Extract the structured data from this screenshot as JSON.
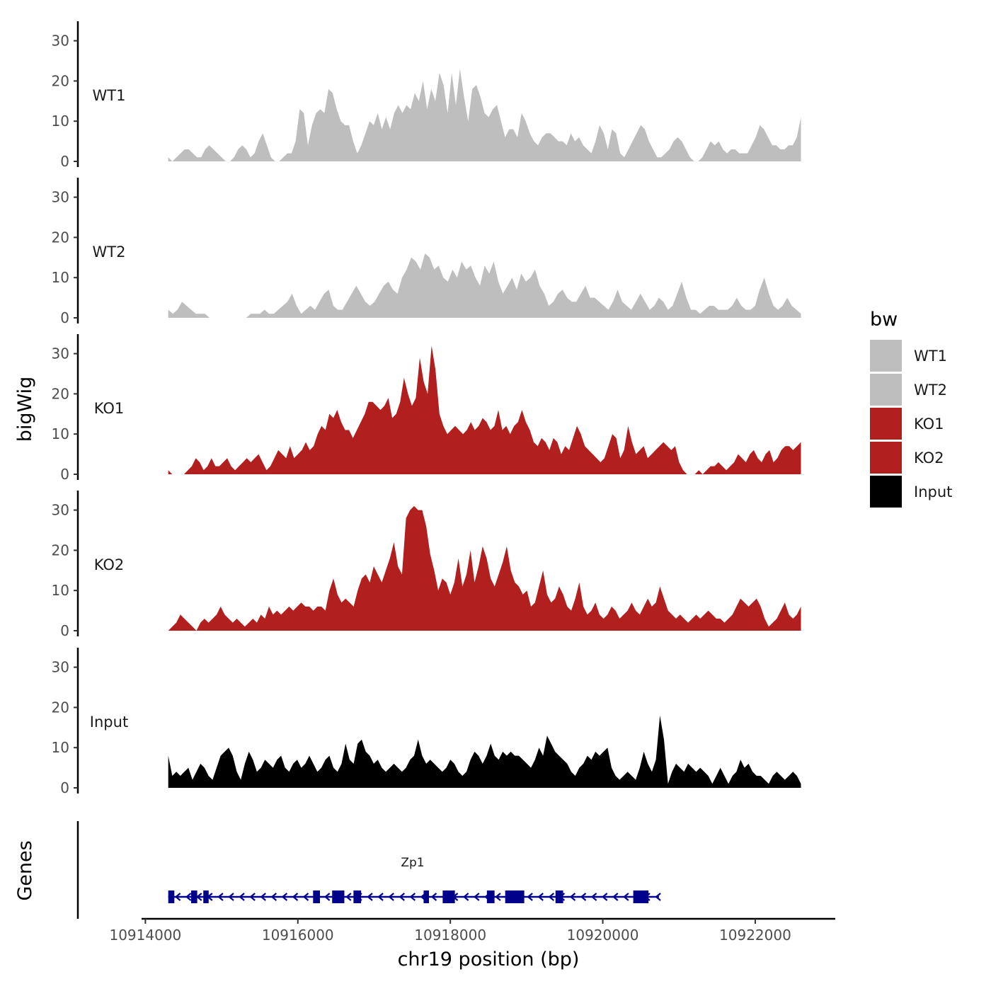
{
  "chart_data": {
    "type": "area",
    "chromosome": "chr19",
    "xlabel": "chr19 position (bp)",
    "ylabel": "bigWig",
    "gene_panel_label": "Genes",
    "xlim": [
      10913950,
      10923050
    ],
    "x_ticks": [
      10914000,
      10916000,
      10918000,
      10920000,
      10922000
    ],
    "x_tick_labels": [
      "10914000",
      "10916000",
      "10918000",
      "10920000",
      "10922000"
    ],
    "ylim": [
      0,
      34
    ],
    "y_ticks": [
      0,
      10,
      20,
      30
    ],
    "y_tick_labels": [
      "0",
      "10",
      "20",
      "30"
    ],
    "series": [
      {
        "name": "WT1",
        "color": "#bebebe",
        "x_start": 10914300,
        "x_end": 10922600,
        "values": [
          1,
          0,
          1,
          2,
          3,
          3,
          2,
          1,
          1,
          3,
          4,
          3,
          2,
          1,
          0,
          0,
          1,
          3,
          4,
          3,
          1,
          2,
          5,
          7,
          4,
          1,
          0,
          0,
          1,
          2,
          2,
          5,
          13,
          12,
          4,
          9,
          12,
          13,
          12,
          18,
          17,
          13,
          10,
          9,
          9,
          5,
          2,
          4,
          7,
          10,
          9,
          12,
          8,
          11,
          8,
          12,
          14,
          12,
          14,
          13,
          17,
          15,
          20,
          13,
          18,
          15,
          22,
          19,
          12,
          22,
          14,
          23,
          16,
          10,
          18,
          19,
          16,
          12,
          11,
          13,
          14,
          10,
          6,
          8,
          8,
          6,
          12,
          10,
          7,
          5,
          4,
          6,
          7,
          7,
          6,
          5,
          5,
          4,
          7,
          5,
          6,
          4,
          3,
          2,
          5,
          9,
          7,
          3,
          8,
          7,
          2,
          1,
          3,
          5,
          7,
          9,
          8,
          5,
          3,
          1,
          1,
          2,
          3,
          5,
          6,
          5,
          3,
          1,
          0,
          0,
          1,
          3,
          5,
          4,
          5,
          3,
          2,
          3,
          3,
          2,
          2,
          2,
          4,
          6,
          9,
          8,
          6,
          4,
          4,
          3,
          3,
          4,
          4,
          6,
          11
        ]
      },
      {
        "name": "WT2",
        "color": "#bebebe",
        "x_start": 10914300,
        "x_end": 10922600,
        "values": [
          2,
          1,
          2,
          4,
          3,
          2,
          1,
          1,
          1,
          0,
          0,
          0,
          0,
          0,
          0,
          0,
          0,
          0,
          1,
          1,
          1,
          2,
          1,
          1,
          2,
          3,
          4,
          6,
          3,
          1,
          2,
          3,
          2,
          4,
          6,
          7,
          3,
          2,
          2,
          4,
          6,
          8,
          6,
          4,
          3,
          4,
          6,
          8,
          9,
          7,
          6,
          10,
          12,
          15,
          14,
          12,
          16,
          15,
          12,
          13,
          10,
          9,
          12,
          10,
          14,
          12,
          13,
          10,
          8,
          13,
          11,
          14,
          9,
          6,
          8,
          10,
          7,
          11,
          9,
          10,
          12,
          8,
          6,
          3,
          4,
          6,
          7,
          5,
          4,
          4,
          6,
          8,
          5,
          5,
          4,
          3,
          2,
          4,
          7,
          4,
          3,
          2,
          4,
          6,
          4,
          2,
          3,
          5,
          4,
          2,
          3,
          6,
          9,
          5,
          2,
          2,
          1,
          2,
          3,
          3,
          2,
          2,
          2,
          3,
          5,
          3,
          2,
          2,
          3,
          7,
          10,
          6,
          3,
          2,
          3,
          5,
          3,
          2,
          1
        ]
      },
      {
        "name": "KO1",
        "color": "#b11f1f",
        "x_start": 10914300,
        "x_end": 10922600,
        "values": [
          1,
          0,
          0,
          0,
          0,
          1,
          2,
          4,
          3,
          1,
          2,
          4,
          2,
          2,
          3,
          4,
          2,
          1,
          2,
          3,
          4,
          3,
          4,
          5,
          3,
          1,
          2,
          4,
          6,
          5,
          4,
          7,
          4,
          5,
          6,
          8,
          6,
          7,
          10,
          12,
          11,
          15,
          14,
          16,
          13,
          11,
          11,
          9,
          11,
          13,
          15,
          18,
          18,
          17,
          16,
          17,
          19,
          14,
          15,
          18,
          24,
          20,
          17,
          19,
          29,
          23,
          20,
          32,
          26,
          15,
          12,
          10,
          11,
          12,
          11,
          10,
          11,
          13,
          11,
          12,
          14,
          13,
          11,
          12,
          16,
          11,
          12,
          10,
          12,
          13,
          16,
          13,
          11,
          8,
          7,
          9,
          8,
          6,
          9,
          8,
          5,
          7,
          6,
          9,
          12,
          10,
          7,
          6,
          5,
          4,
          3,
          4,
          7,
          10,
          9,
          4,
          6,
          12,
          8,
          5,
          6,
          7,
          4,
          5,
          6,
          7,
          8,
          7,
          6,
          7,
          3,
          1,
          0,
          0,
          0,
          1,
          0,
          1,
          2,
          2,
          3,
          2,
          1,
          2,
          3,
          5,
          4,
          3,
          5,
          6,
          4,
          3,
          5,
          6,
          3,
          4,
          6,
          7,
          7,
          6,
          7,
          8
        ]
      },
      {
        "name": "KO2",
        "color": "#b11f1f",
        "x_start": 10914300,
        "x_end": 10922600,
        "values": [
          0,
          1,
          2,
          4,
          3,
          2,
          1,
          0,
          2,
          3,
          2,
          3,
          4,
          6,
          4,
          3,
          2,
          3,
          2,
          1,
          2,
          3,
          2,
          4,
          3,
          6,
          4,
          5,
          4,
          5,
          6,
          5,
          6,
          7,
          6,
          6,
          5,
          6,
          6,
          5,
          10,
          13,
          9,
          7,
          8,
          7,
          6,
          10,
          13,
          14,
          12,
          16,
          14,
          12,
          15,
          18,
          22,
          16,
          14,
          28,
          30,
          31,
          30,
          30,
          26,
          19,
          15,
          10,
          13,
          12,
          9,
          12,
          18,
          11,
          14,
          20,
          12,
          16,
          21,
          18,
          13,
          11,
          14,
          17,
          21,
          15,
          12,
          11,
          9,
          10,
          6,
          7,
          11,
          15,
          9,
          7,
          8,
          11,
          9,
          6,
          5,
          8,
          12,
          6,
          4,
          5,
          7,
          4,
          3,
          4,
          6,
          5,
          3,
          4,
          5,
          7,
          5,
          4,
          6,
          8,
          6,
          7,
          11,
          8,
          5,
          4,
          3,
          4,
          3,
          2,
          3,
          4,
          3,
          4,
          5,
          4,
          3,
          3,
          2,
          3,
          4,
          6,
          8,
          7,
          6,
          7,
          8,
          6,
          3,
          1,
          2,
          3,
          5,
          7,
          4,
          3,
          4,
          6
        ]
      },
      {
        "name": "Input",
        "color": "#000000",
        "x_start": 10914300,
        "x_end": 10922600,
        "values": [
          8,
          3,
          4,
          3,
          4,
          5,
          2,
          4,
          6,
          5,
          3,
          2,
          5,
          8,
          9,
          10,
          8,
          4,
          2,
          6,
          9,
          7,
          4,
          5,
          7,
          6,
          5,
          7,
          8,
          5,
          4,
          6,
          7,
          5,
          6,
          8,
          6,
          4,
          5,
          7,
          8,
          5,
          4,
          6,
          11,
          7,
          6,
          11,
          12,
          9,
          8,
          6,
          7,
          5,
          4,
          5,
          6,
          5,
          4,
          5,
          7,
          8,
          12,
          8,
          6,
          7,
          6,
          5,
          4,
          5,
          7,
          6,
          4,
          3,
          4,
          7,
          9,
          8,
          6,
          8,
          11,
          8,
          7,
          9,
          8,
          9,
          8,
          8,
          7,
          6,
          5,
          7,
          10,
          8,
          13,
          11,
          9,
          8,
          7,
          6,
          4,
          3,
          5,
          6,
          8,
          7,
          9,
          8,
          9,
          10,
          5,
          3,
          2,
          3,
          4,
          3,
          2,
          5,
          9,
          6,
          4,
          7,
          18,
          12,
          1,
          4,
          6,
          5,
          4,
          6,
          5,
          4,
          5,
          4,
          3,
          1,
          3,
          5,
          3,
          1,
          3,
          4,
          7,
          5,
          6,
          4,
          3,
          3,
          2,
          1,
          3,
          4,
          3,
          2,
          3,
          4,
          3,
          1
        ]
      }
    ],
    "tracks": [
      {
        "label": "WT1",
        "series": "WT1"
      },
      {
        "label": "WT2",
        "series": "WT2"
      },
      {
        "label": "KO1",
        "series": "KO1"
      },
      {
        "label": "KO2",
        "series": "KO2"
      },
      {
        "label": "Input",
        "series": "Input"
      }
    ],
    "legend": {
      "title": "bw",
      "placement": "right",
      "items": [
        {
          "label": "WT1",
          "color": "#bebebe"
        },
        {
          "label": "WT2",
          "color": "#bebebe"
        },
        {
          "label": "KO1",
          "color": "#b11f1f"
        },
        {
          "label": "KO2",
          "color": "#b11f1f"
        },
        {
          "label": "Input",
          "color": "#000000"
        }
      ]
    },
    "gene": {
      "name": "Zp1",
      "color": "#00008b",
      "strand": "-",
      "start": 10914300,
      "end": 10920700,
      "exons": [
        [
          10914300,
          10914380
        ],
        [
          10914600,
          10914680
        ],
        [
          10914760,
          10914830
        ],
        [
          10916200,
          10916290
        ],
        [
          10916450,
          10916610
        ],
        [
          10916730,
          10916830
        ],
        [
          10917650,
          10917720
        ],
        [
          10917900,
          10918060
        ],
        [
          10918480,
          10918580
        ],
        [
          10918720,
          10918970
        ],
        [
          10919380,
          10919480
        ],
        [
          10920400,
          10920600
        ]
      ]
    }
  }
}
